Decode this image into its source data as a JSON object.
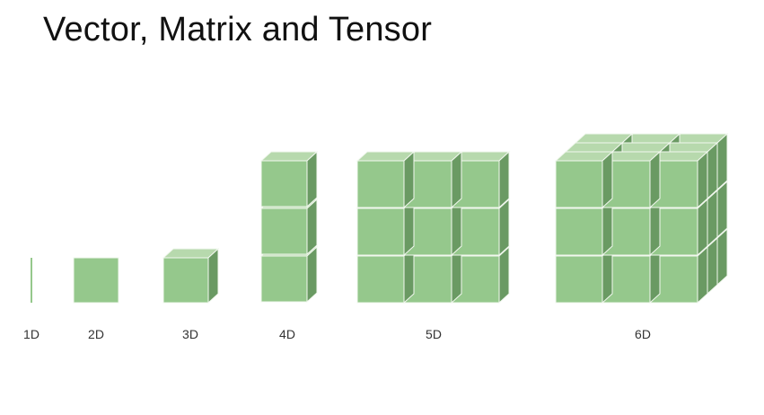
{
  "title": "Vector, Matrix and Tensor",
  "labels": [
    "1D",
    "2D",
    "3D",
    "4D",
    "5D",
    "6D"
  ],
  "cube_colors": {
    "front": "#95c88c",
    "top": "#b7d9ad",
    "side": "#6a9a63",
    "edge": "#f2f8ef"
  }
}
